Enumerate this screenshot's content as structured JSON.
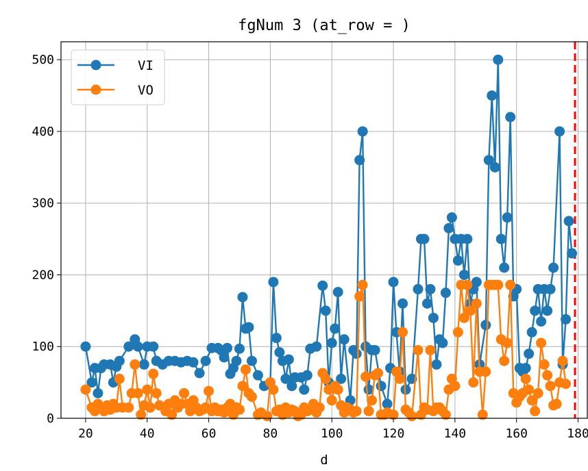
{
  "chart_data": {
    "type": "line",
    "title": "fgNum 3 (at_row = )",
    "xlabel": "d",
    "ylabel": "",
    "xlim": [
      12,
      183
    ],
    "ylim": [
      0,
      525
    ],
    "xticks": [
      20,
      40,
      60,
      80,
      100,
      120,
      140,
      160,
      180
    ],
    "yticks": [
      0,
      100,
      200,
      300,
      400,
      500
    ],
    "grid": true,
    "legend_position": "top-left",
    "vline": {
      "x": 179,
      "color": "#ff0000",
      "style": "dashed"
    },
    "series": [
      {
        "name": "VI",
        "color": "#1f77b4",
        "points": [
          [
            20,
            100
          ],
          [
            22,
            50
          ],
          [
            23,
            70
          ],
          [
            24,
            35
          ],
          [
            25,
            70
          ],
          [
            26,
            75
          ],
          [
            28,
            75
          ],
          [
            29,
            50
          ],
          [
            30,
            72
          ],
          [
            31,
            80
          ],
          [
            34,
            100
          ],
          [
            36,
            110
          ],
          [
            37,
            100
          ],
          [
            39,
            75
          ],
          [
            40,
            100
          ],
          [
            42,
            100
          ],
          [
            43,
            80
          ],
          [
            45,
            75
          ],
          [
            47,
            80
          ],
          [
            49,
            80
          ],
          [
            51,
            78
          ],
          [
            53,
            80
          ],
          [
            55,
            78
          ],
          [
            57,
            63
          ],
          [
            59,
            80
          ],
          [
            61,
            98
          ],
          [
            63,
            98
          ],
          [
            64,
            95
          ],
          [
            65,
            85
          ],
          [
            66,
            98
          ],
          [
            67,
            62
          ],
          [
            68,
            70
          ],
          [
            69,
            80
          ],
          [
            70,
            97
          ],
          [
            71,
            169
          ],
          [
            72,
            125
          ],
          [
            73,
            127
          ],
          [
            74,
            80
          ],
          [
            76,
            60
          ],
          [
            78,
            45
          ],
          [
            80,
            50
          ],
          [
            81,
            190
          ],
          [
            82,
            112
          ],
          [
            83,
            92
          ],
          [
            84,
            80
          ],
          [
            85,
            55
          ],
          [
            86,
            82
          ],
          [
            87,
            45
          ],
          [
            88,
            57
          ],
          [
            90,
            57
          ],
          [
            91,
            40
          ],
          [
            92,
            60
          ],
          [
            93,
            97
          ],
          [
            95,
            100
          ],
          [
            97,
            185
          ],
          [
            98,
            150
          ],
          [
            99,
            50
          ],
          [
            100,
            105
          ],
          [
            101,
            125
          ],
          [
            102,
            176
          ],
          [
            103,
            55
          ],
          [
            104,
            110
          ],
          [
            106,
            25
          ],
          [
            107,
            95
          ],
          [
            108,
            90
          ],
          [
            109,
            360
          ],
          [
            110,
            400
          ],
          [
            111,
            100
          ],
          [
            112,
            40
          ],
          [
            113,
            95
          ],
          [
            114,
            95
          ],
          [
            116,
            45
          ],
          [
            118,
            20
          ],
          [
            119,
            70
          ],
          [
            120,
            190
          ],
          [
            121,
            120
          ],
          [
            122,
            65
          ],
          [
            123,
            160
          ],
          [
            124,
            40
          ],
          [
            126,
            55
          ],
          [
            128,
            180
          ],
          [
            129,
            250
          ],
          [
            130,
            250
          ],
          [
            131,
            160
          ],
          [
            132,
            180
          ],
          [
            133,
            140
          ],
          [
            134,
            75
          ],
          [
            135,
            110
          ],
          [
            136,
            105
          ],
          [
            137,
            175
          ],
          [
            138,
            265
          ],
          [
            139,
            280
          ],
          [
            140,
            250
          ],
          [
            141,
            220
          ],
          [
            142,
            250
          ],
          [
            143,
            200
          ],
          [
            144,
            250
          ],
          [
            145,
            160
          ],
          [
            146,
            180
          ],
          [
            147,
            190
          ],
          [
            148,
            75
          ],
          [
            150,
            130
          ],
          [
            151,
            360
          ],
          [
            152,
            450
          ],
          [
            153,
            350
          ],
          [
            154,
            500
          ],
          [
            155,
            250
          ],
          [
            156,
            210
          ],
          [
            157,
            280
          ],
          [
            158,
            420
          ],
          [
            159,
            170
          ],
          [
            160,
            180
          ],
          [
            161,
            70
          ],
          [
            162,
            65
          ],
          [
            163,
            70
          ],
          [
            164,
            90
          ],
          [
            165,
            120
          ],
          [
            166,
            150
          ],
          [
            167,
            180
          ],
          [
            168,
            135
          ],
          [
            169,
            180
          ],
          [
            170,
            150
          ],
          [
            171,
            180
          ],
          [
            172,
            210
          ],
          [
            174,
            400
          ],
          [
            175,
            75
          ],
          [
            176,
            138
          ],
          [
            177,
            275
          ],
          [
            178,
            230
          ]
        ]
      },
      {
        "name": "VO",
        "color": "#ff7f0e",
        "points": [
          [
            20,
            40
          ],
          [
            22,
            15
          ],
          [
            23,
            10
          ],
          [
            24,
            20
          ],
          [
            25,
            15
          ],
          [
            26,
            10
          ],
          [
            27,
            18
          ],
          [
            28,
            12
          ],
          [
            29,
            20
          ],
          [
            30,
            15
          ],
          [
            31,
            55
          ],
          [
            32,
            15
          ],
          [
            34,
            15
          ],
          [
            35,
            35
          ],
          [
            36,
            75
          ],
          [
            37,
            35
          ],
          [
            38,
            5
          ],
          [
            39,
            18
          ],
          [
            40,
            40
          ],
          [
            41,
            15
          ],
          [
            42,
            62
          ],
          [
            43,
            35
          ],
          [
            44,
            18
          ],
          [
            46,
            10
          ],
          [
            47,
            20
          ],
          [
            48,
            5
          ],
          [
            49,
            25
          ],
          [
            50,
            15
          ],
          [
            51,
            20
          ],
          [
            52,
            35
          ],
          [
            53,
            20
          ],
          [
            54,
            10
          ],
          [
            55,
            25
          ],
          [
            56,
            15
          ],
          [
            57,
            10
          ],
          [
            58,
            12
          ],
          [
            59,
            15
          ],
          [
            60,
            38
          ],
          [
            61,
            10
          ],
          [
            62,
            15
          ],
          [
            63,
            10
          ],
          [
            64,
            12
          ],
          [
            65,
            8
          ],
          [
            66,
            15
          ],
          [
            67,
            20
          ],
          [
            68,
            5
          ],
          [
            69,
            15
          ],
          [
            70,
            12
          ],
          [
            71,
            45
          ],
          [
            72,
            68
          ],
          [
            73,
            35
          ],
          [
            74,
            30
          ],
          [
            76,
            5
          ],
          [
            77,
            8
          ],
          [
            79,
            3
          ],
          [
            80,
            50
          ],
          [
            81,
            40
          ],
          [
            82,
            10
          ],
          [
            83,
            12
          ],
          [
            84,
            5
          ],
          [
            85,
            15
          ],
          [
            86,
            8
          ],
          [
            87,
            12
          ],
          [
            88,
            10
          ],
          [
            89,
            3
          ],
          [
            90,
            5
          ],
          [
            91,
            15
          ],
          [
            92,
            10
          ],
          [
            93,
            12
          ],
          [
            94,
            20
          ],
          [
            95,
            8
          ],
          [
            96,
            15
          ],
          [
            97,
            63
          ],
          [
            98,
            55
          ],
          [
            99,
            40
          ],
          [
            100,
            25
          ],
          [
            101,
            45
          ],
          [
            102,
            40
          ],
          [
            103,
            18
          ],
          [
            104,
            8
          ],
          [
            105,
            15
          ],
          [
            106,
            12
          ],
          [
            107,
            8
          ],
          [
            108,
            10
          ],
          [
            109,
            170
          ],
          [
            110,
            186
          ],
          [
            111,
            58
          ],
          [
            112,
            10
          ],
          [
            113,
            25
          ],
          [
            114,
            60
          ],
          [
            115,
            63
          ],
          [
            116,
            5
          ],
          [
            117,
            5
          ],
          [
            118,
            8
          ],
          [
            120,
            5
          ],
          [
            121,
            65
          ],
          [
            122,
            55
          ],
          [
            123,
            120
          ],
          [
            124,
            12
          ],
          [
            125,
            8
          ],
          [
            126,
            3
          ],
          [
            128,
            95
          ],
          [
            129,
            5
          ],
          [
            130,
            15
          ],
          [
            131,
            12
          ],
          [
            132,
            95
          ],
          [
            133,
            10
          ],
          [
            134,
            15
          ],
          [
            135,
            15
          ],
          [
            136,
            10
          ],
          [
            137,
            5
          ],
          [
            138,
            40
          ],
          [
            139,
            55
          ],
          [
            140,
            45
          ],
          [
            141,
            120
          ],
          [
            142,
            186
          ],
          [
            143,
            140
          ],
          [
            144,
            186
          ],
          [
            145,
            150
          ],
          [
            146,
            50
          ],
          [
            147,
            160
          ],
          [
            148,
            65
          ],
          [
            149,
            5
          ],
          [
            150,
            65
          ],
          [
            151,
            186
          ],
          [
            152,
            186
          ],
          [
            153,
            186
          ],
          [
            154,
            186
          ],
          [
            155,
            110
          ],
          [
            156,
            80
          ],
          [
            157,
            105
          ],
          [
            158,
            186
          ],
          [
            159,
            35
          ],
          [
            160,
            22
          ],
          [
            161,
            30
          ],
          [
            162,
            35
          ],
          [
            163,
            55
          ],
          [
            164,
            40
          ],
          [
            165,
            25
          ],
          [
            166,
            10
          ],
          [
            167,
            35
          ],
          [
            168,
            105
          ],
          [
            169,
            75
          ],
          [
            170,
            60
          ],
          [
            171,
            45
          ],
          [
            172,
            18
          ],
          [
            173,
            20
          ],
          [
            174,
            50
          ],
          [
            175,
            80
          ],
          [
            176,
            48
          ]
        ]
      }
    ]
  }
}
